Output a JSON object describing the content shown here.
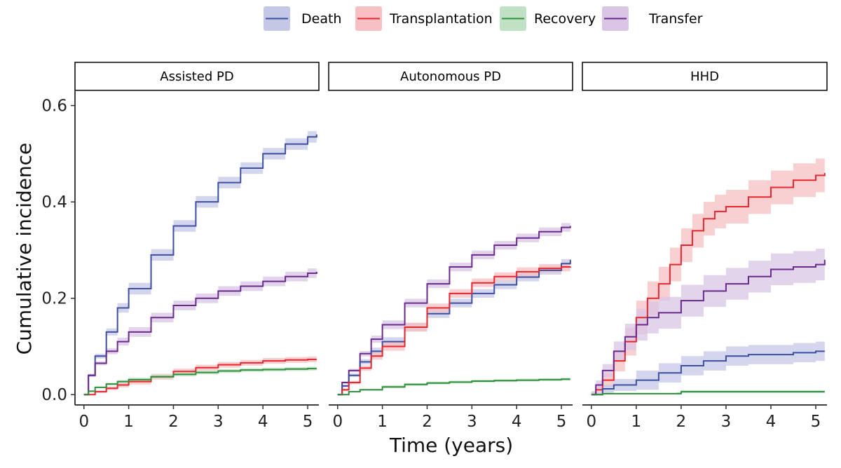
{
  "chart_data": {
    "type": "line",
    "step": true,
    "xlabel": "Time (years)",
    "ylabel": "Cumulative incidence",
    "xlim": [
      -0.2,
      5.25
    ],
    "ylim": [
      -0.02,
      0.63
    ],
    "xticks": [
      0,
      1,
      2,
      3,
      4,
      5
    ],
    "yticks": [
      0.0,
      0.2,
      0.4,
      0.6
    ],
    "ytick_labels": [
      "0.0",
      "0.2",
      "0.4",
      "0.6"
    ],
    "grid": false,
    "legend_position": "top",
    "legend": [
      {
        "name": "Death",
        "color": "#3c4fa0",
        "band": "#c4c8e6"
      },
      {
        "name": "Transplantation",
        "color": "#e8262e",
        "band": "#f7c0c2"
      },
      {
        "name": "Recovery",
        "color": "#2f8e3e",
        "band": "#c0e1c4"
      },
      {
        "name": "Transfer",
        "color": "#6a2a8c",
        "band": "#d8c6e4"
      }
    ],
    "panels": [
      {
        "title": "Assisted PD",
        "series": [
          {
            "name": "Death",
            "x": [
              0,
              0.1,
              0.25,
              0.5,
              0.75,
              1,
              1.5,
              2,
              2.5,
              3,
              3.5,
              4,
              4.5,
              5,
              5.2
            ],
            "y": [
              0,
              0.04,
              0.08,
              0.13,
              0.18,
              0.22,
              0.29,
              0.35,
              0.4,
              0.44,
              0.47,
              0.5,
              0.52,
              0.535,
              0.54
            ],
            "band": 0.012
          },
          {
            "name": "Transfer",
            "x": [
              0,
              0.1,
              0.25,
              0.5,
              0.75,
              1,
              1.5,
              2,
              2.5,
              3,
              3.5,
              4,
              4.5,
              5,
              5.2
            ],
            "y": [
              0,
              0.04,
              0.065,
              0.09,
              0.11,
              0.13,
              0.16,
              0.185,
              0.2,
              0.215,
              0.225,
              0.235,
              0.245,
              0.252,
              0.255
            ],
            "band": 0.01
          },
          {
            "name": "Transplantation",
            "x": [
              0,
              0.25,
              0.5,
              0.75,
              1,
              1.5,
              2,
              2.5,
              3,
              3.5,
              4,
              4.5,
              5,
              5.2
            ],
            "y": [
              0,
              0.006,
              0.013,
              0.02,
              0.027,
              0.037,
              0.048,
              0.056,
              0.062,
              0.066,
              0.07,
              0.072,
              0.073,
              0.073
            ],
            "band": 0.006
          },
          {
            "name": "Recovery",
            "x": [
              0,
              0.1,
              0.25,
              0.5,
              0.75,
              1,
              1.5,
              2,
              2.5,
              3,
              3.5,
              4,
              4.5,
              5,
              5.2
            ],
            "y": [
              0,
              0.007,
              0.015,
              0.022,
              0.027,
              0.031,
              0.037,
              0.042,
              0.046,
              0.049,
              0.051,
              0.052,
              0.053,
              0.054,
              0.054
            ],
            "band": 0.004
          }
        ]
      },
      {
        "title": "Autonomous PD",
        "series": [
          {
            "name": "Transfer",
            "x": [
              0,
              0.1,
              0.25,
              0.5,
              0.75,
              1,
              1.5,
              2,
              2.5,
              3,
              3.5,
              4,
              4.5,
              5,
              5.2
            ],
            "y": [
              0,
              0.025,
              0.05,
              0.085,
              0.115,
              0.145,
              0.19,
              0.23,
              0.265,
              0.29,
              0.31,
              0.325,
              0.338,
              0.347,
              0.35
            ],
            "band": 0.009
          },
          {
            "name": "Death",
            "x": [
              0,
              0.1,
              0.25,
              0.5,
              0.75,
              1,
              1.5,
              2,
              2.5,
              3,
              3.5,
              4,
              4.5,
              5,
              5.2
            ],
            "y": [
              0,
              0.018,
              0.04,
              0.068,
              0.09,
              0.11,
              0.14,
              0.168,
              0.19,
              0.21,
              0.228,
              0.244,
              0.258,
              0.272,
              0.28
            ],
            "band": 0.009
          },
          {
            "name": "Transplantation",
            "x": [
              0,
              0.1,
              0.25,
              0.5,
              0.75,
              1,
              1.5,
              2,
              2.5,
              3,
              3.5,
              4,
              4.5,
              5,
              5.2
            ],
            "y": [
              0,
              0.01,
              0.025,
              0.055,
              0.08,
              0.1,
              0.14,
              0.18,
              0.21,
              0.232,
              0.245,
              0.255,
              0.262,
              0.265,
              0.266
            ],
            "band": 0.009
          },
          {
            "name": "Recovery",
            "x": [
              0,
              0.25,
              0.5,
              1,
              1.5,
              2,
              2.5,
              3,
              3.5,
              4,
              4.5,
              5,
              5.2
            ],
            "y": [
              0,
              0.006,
              0.01,
              0.016,
              0.021,
              0.024,
              0.026,
              0.028,
              0.029,
              0.03,
              0.031,
              0.032,
              0.032
            ],
            "band": 0.003
          }
        ]
      },
      {
        "title": "HHD",
        "series": [
          {
            "name": "Transplantation",
            "x": [
              0,
              0.1,
              0.25,
              0.5,
              0.75,
              1,
              1.25,
              1.5,
              1.75,
              2,
              2.25,
              2.5,
              2.75,
              3,
              3.5,
              4,
              4.5,
              5,
              5.2
            ],
            "y": [
              0,
              0.01,
              0.03,
              0.07,
              0.11,
              0.16,
              0.2,
              0.23,
              0.27,
              0.31,
              0.34,
              0.365,
              0.38,
              0.39,
              0.41,
              0.43,
              0.445,
              0.455,
              0.46
            ],
            "band": 0.035
          },
          {
            "name": "Transfer",
            "x": [
              0,
              0.1,
              0.25,
              0.5,
              0.75,
              1,
              1.25,
              1.5,
              2,
              2.5,
              3,
              3.5,
              4,
              4.5,
              5,
              5.2
            ],
            "y": [
              0,
              0.02,
              0.05,
              0.09,
              0.12,
              0.145,
              0.16,
              0.17,
              0.195,
              0.215,
              0.23,
              0.245,
              0.26,
              0.265,
              0.27,
              0.28
            ],
            "band": 0.033
          },
          {
            "name": "Death",
            "x": [
              0,
              0.25,
              0.5,
              1,
              1.5,
              2,
              2.5,
              3,
              3.5,
              4,
              4.5,
              5,
              5.2
            ],
            "y": [
              0,
              0.012,
              0.02,
              0.03,
              0.045,
              0.06,
              0.07,
              0.08,
              0.083,
              0.083,
              0.087,
              0.09,
              0.09
            ],
            "band": 0.02
          },
          {
            "name": "Recovery",
            "x": [
              0,
              0.25,
              1.9,
              2,
              5.2
            ],
            "y": [
              0,
              0.002,
              0.002,
              0.006,
              0.006
            ],
            "band": 0.003
          }
        ]
      }
    ]
  }
}
